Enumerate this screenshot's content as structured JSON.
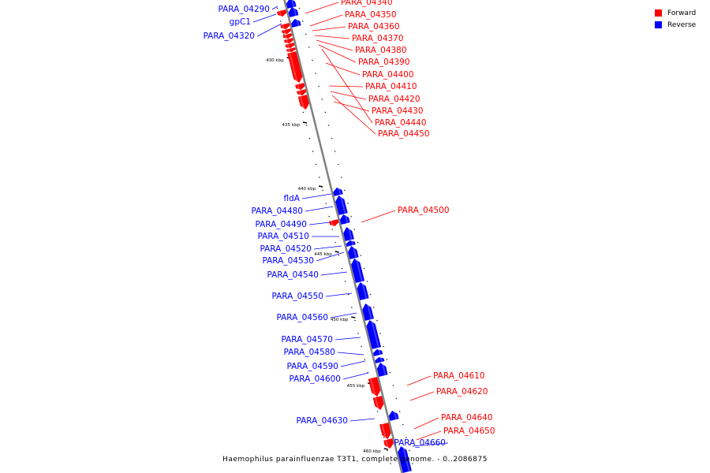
{
  "colors": {
    "forward": "#ff0000",
    "reverse": "#0000ff",
    "backbone": "#808080",
    "text": "#000000"
  },
  "legend": [
    {
      "label": "Forward",
      "color": "#ff0000"
    },
    {
      "label": "Reverse",
      "color": "#0000ff"
    }
  ],
  "caption": "Haemophilus parainfluenzae T3T1, complete genome. - 0..2086875",
  "axis": {
    "unit": "kbp",
    "ticks": [
      {
        "label": "430 kbp",
        "kbp": 430
      },
      {
        "label": "435 kbp",
        "kbp": 435
      },
      {
        "label": "440 kbp",
        "kbp": 440
      },
      {
        "label": "445 kbp",
        "kbp": 445
      },
      {
        "label": "450 kbp",
        "kbp": 450
      },
      {
        "label": "455 kbp",
        "kbp": 455
      },
      {
        "label": "460 kbp",
        "kbp": 460
      }
    ]
  },
  "genes": [
    {
      "label": "PARA_04290",
      "strand": "reverse"
    },
    {
      "label": "gpC1",
      "strand": "reverse"
    },
    {
      "label": "PARA_04320",
      "strand": "reverse"
    },
    {
      "label": "PARA_04340",
      "strand": "forward"
    },
    {
      "label": "PARA_04350",
      "strand": "forward"
    },
    {
      "label": "PARA_04360",
      "strand": "forward"
    },
    {
      "label": "PARA_04370",
      "strand": "forward"
    },
    {
      "label": "PARA_04380",
      "strand": "forward"
    },
    {
      "label": "PARA_04390",
      "strand": "forward"
    },
    {
      "label": "PARA_04400",
      "strand": "forward"
    },
    {
      "label": "PARA_04410",
      "strand": "forward"
    },
    {
      "label": "PARA_04420",
      "strand": "forward"
    },
    {
      "label": "PARA_04430",
      "strand": "forward"
    },
    {
      "label": "PARA_04440",
      "strand": "forward"
    },
    {
      "label": "PARA_04450",
      "strand": "forward"
    },
    {
      "label": "fldA",
      "strand": "reverse"
    },
    {
      "label": "PARA_04480",
      "strand": "reverse"
    },
    {
      "label": "PARA_04490",
      "strand": "reverse"
    },
    {
      "label": "PARA_04500",
      "strand": "forward"
    },
    {
      "label": "PARA_04510",
      "strand": "reverse"
    },
    {
      "label": "PARA_04520",
      "strand": "reverse"
    },
    {
      "label": "PARA_04530",
      "strand": "reverse"
    },
    {
      "label": "PARA_04540",
      "strand": "reverse"
    },
    {
      "label": "PARA_04550",
      "strand": "reverse"
    },
    {
      "label": "PARA_04560",
      "strand": "reverse"
    },
    {
      "label": "PARA_04570",
      "strand": "reverse"
    },
    {
      "label": "PARA_04580",
      "strand": "reverse"
    },
    {
      "label": "PARA_04590",
      "strand": "reverse"
    },
    {
      "label": "PARA_04600",
      "strand": "reverse"
    },
    {
      "label": "PARA_04610",
      "strand": "forward"
    },
    {
      "label": "PARA_04620",
      "strand": "forward"
    },
    {
      "label": "PARA_04630",
      "strand": "reverse"
    },
    {
      "label": "PARA_04640",
      "strand": "forward"
    },
    {
      "label": "PARA_04650",
      "strand": "forward"
    },
    {
      "label": "PARA_04660",
      "strand": "reverse"
    }
  ]
}
